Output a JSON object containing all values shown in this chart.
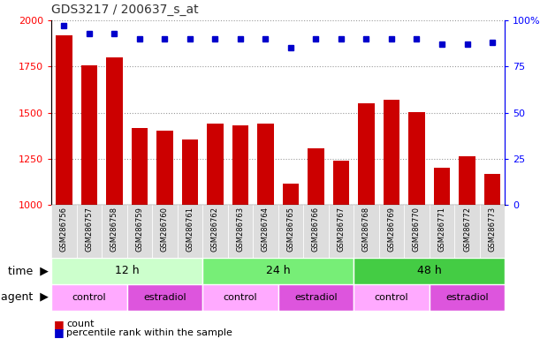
{
  "title": "GDS3217 / 200637_s_at",
  "samples": [
    "GSM286756",
    "GSM286757",
    "GSM286758",
    "GSM286759",
    "GSM286760",
    "GSM286761",
    "GSM286762",
    "GSM286763",
    "GSM286764",
    "GSM286765",
    "GSM286766",
    "GSM286767",
    "GSM286768",
    "GSM286769",
    "GSM286770",
    "GSM286771",
    "GSM286772",
    "GSM286773"
  ],
  "counts": [
    1920,
    1755,
    1800,
    1415,
    1405,
    1355,
    1440,
    1430,
    1440,
    1115,
    1305,
    1240,
    1550,
    1570,
    1505,
    1200,
    1265,
    1170
  ],
  "percentile": [
    97,
    93,
    93,
    90,
    90,
    90,
    90,
    90,
    90,
    85,
    90,
    90,
    90,
    90,
    90,
    87,
    87,
    88
  ],
  "bar_color": "#cc0000",
  "dot_color": "#0000cc",
  "ylim_left": [
    1000,
    2000
  ],
  "ylim_right": [
    0,
    100
  ],
  "yticks_left": [
    1000,
    1250,
    1500,
    1750,
    2000
  ],
  "yticks_right": [
    0,
    25,
    50,
    75,
    100
  ],
  "bg_color": "#ffffff",
  "time_groups": [
    {
      "label": "12 h",
      "start": 0,
      "end": 6,
      "color": "#ccffcc"
    },
    {
      "label": "24 h",
      "start": 6,
      "end": 12,
      "color": "#77ee77"
    },
    {
      "label": "48 h",
      "start": 12,
      "end": 18,
      "color": "#44cc44"
    }
  ],
  "agent_groups": [
    {
      "label": "control",
      "start": 0,
      "end": 3,
      "color": "#ffaaff"
    },
    {
      "label": "estradiol",
      "start": 3,
      "end": 6,
      "color": "#dd55dd"
    },
    {
      "label": "control",
      "start": 6,
      "end": 9,
      "color": "#ffaaff"
    },
    {
      "label": "estradiol",
      "start": 9,
      "end": 12,
      "color": "#dd55dd"
    },
    {
      "label": "control",
      "start": 12,
      "end": 15,
      "color": "#ffaaff"
    },
    {
      "label": "estradiol",
      "start": 15,
      "end": 18,
      "color": "#dd55dd"
    }
  ],
  "legend_count_label": "count",
  "legend_pct_label": "percentile rank within the sample",
  "time_label": "time",
  "agent_label": "agent",
  "xtick_bg": "#dddddd"
}
